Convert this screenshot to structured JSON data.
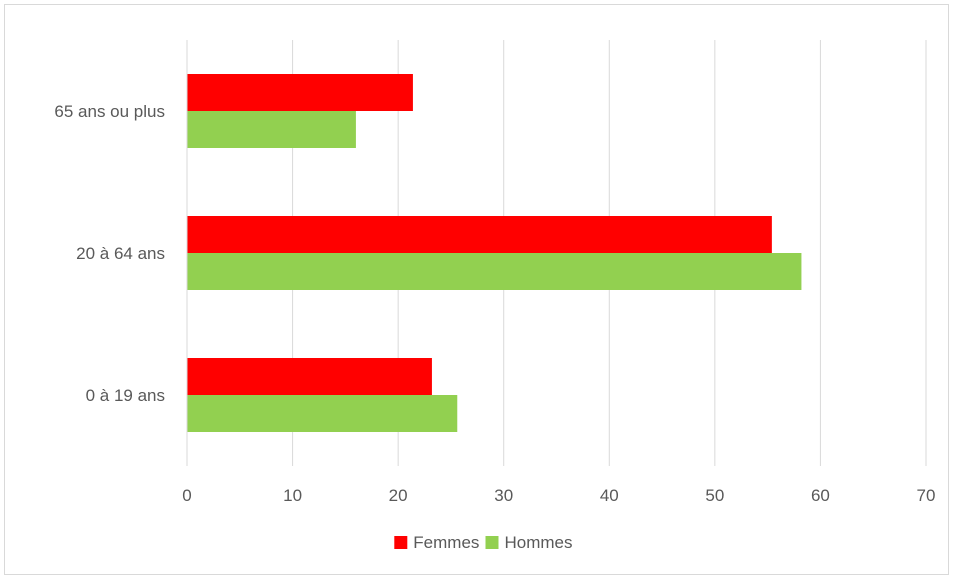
{
  "chart_data": {
    "type": "bar",
    "orientation": "horizontal",
    "categories": [
      "0 à 19 ans",
      "20 à 64 ans",
      "65 ans ou plus"
    ],
    "series": [
      {
        "name": "Femmes",
        "color": "#ff0000",
        "values": [
          23.2,
          55.4,
          21.4
        ]
      },
      {
        "name": "Hommes",
        "color": "#92d050",
        "values": [
          25.6,
          58.2,
          16.0
        ]
      }
    ],
    "title": "",
    "xlabel": "",
    "ylabel": "",
    "xlim": [
      0,
      70
    ],
    "xticks": [
      "0",
      "10",
      "20",
      "30",
      "40",
      "50",
      "60",
      "70"
    ],
    "grid": true,
    "legend_position": "bottom"
  }
}
